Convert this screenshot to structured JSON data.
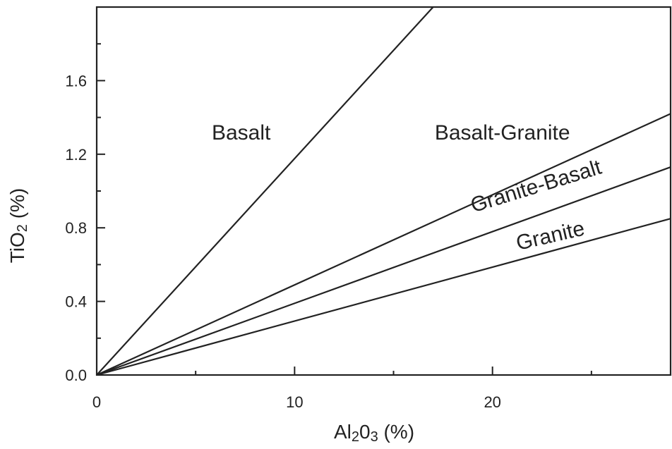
{
  "chart_data": {
    "type": "line",
    "xlabel": {
      "base1": "Al",
      "sub1": "2",
      "base2": "0",
      "sub2": "3",
      "unit": " (%)"
    },
    "ylabel": {
      "base": "TiO",
      "sub": "2",
      "unit": " (%)"
    },
    "xlim": [
      0,
      29
    ],
    "ylim": [
      0,
      2.0
    ],
    "xticks": [
      {
        "value": 0,
        "label": "0"
      },
      {
        "value": 10,
        "label": "10"
      },
      {
        "value": 20,
        "label": "20"
      }
    ],
    "xminor": [
      5,
      15,
      25
    ],
    "yticks": [
      {
        "value": 0.0,
        "label": "0.0"
      },
      {
        "value": 0.4,
        "label": "0.4"
      },
      {
        "value": 0.8,
        "label": "0.8"
      },
      {
        "value": 1.2,
        "label": "1.2"
      },
      {
        "value": 1.6,
        "label": "1.6"
      }
    ],
    "yminor": [
      0.2,
      0.6,
      1.0,
      1.4,
      1.8
    ],
    "grid": false,
    "series": [
      {
        "x": [
          0,
          17
        ],
        "y": [
          0,
          2.0
        ]
      },
      {
        "x": [
          0,
          29
        ],
        "y": [
          0,
          1.42
        ]
      },
      {
        "x": [
          0,
          29
        ],
        "y": [
          0,
          1.13
        ]
      },
      {
        "x": [
          0,
          29
        ],
        "y": [
          0,
          0.85
        ]
      }
    ],
    "region_labels": [
      {
        "text": "Basalt",
        "x": 7.3,
        "y": 1.28,
        "angle": 0
      },
      {
        "text": "Basalt-Granite",
        "x": 20.5,
        "y": 1.28,
        "angle": 0
      },
      {
        "text": "Granite-Basalt",
        "x": 22.3,
        "y": 0.99,
        "angle": -17
      },
      {
        "text": "Granite",
        "x": 23.0,
        "y": 0.72,
        "angle": -13
      }
    ]
  }
}
